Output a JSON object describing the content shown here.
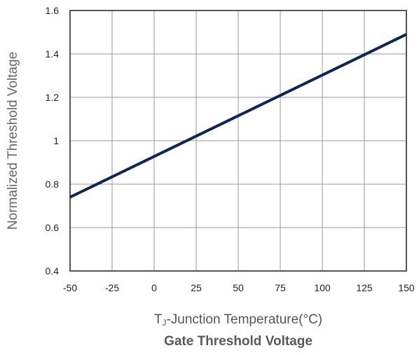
{
  "chart_data": {
    "type": "line",
    "title": "Gate Threshold Voltage",
    "xlabel": {
      "prefix": "T",
      "sub": "J",
      "rest": "-Junction Temperature(°C)"
    },
    "ylabel": "Normalized Threshold Voltage",
    "xlim": [
      -50,
      150
    ],
    "ylim": [
      0.4,
      1.6
    ],
    "x_ticks": [
      -50,
      -25,
      0,
      25,
      50,
      75,
      100,
      125,
      150
    ],
    "y_ticks": [
      0.4,
      0.6,
      0.8,
      1,
      1.2,
      1.4,
      1.6
    ],
    "y_tick_labels": [
      "0.4",
      "0.6",
      "0.8",
      "1",
      "1.2",
      "1.4",
      "1.6"
    ],
    "grid": true,
    "series": [
      {
        "x": [
          -50,
          150
        ],
        "y": [
          0.74,
          1.49
        ],
        "color": "#0e2556"
      }
    ]
  }
}
